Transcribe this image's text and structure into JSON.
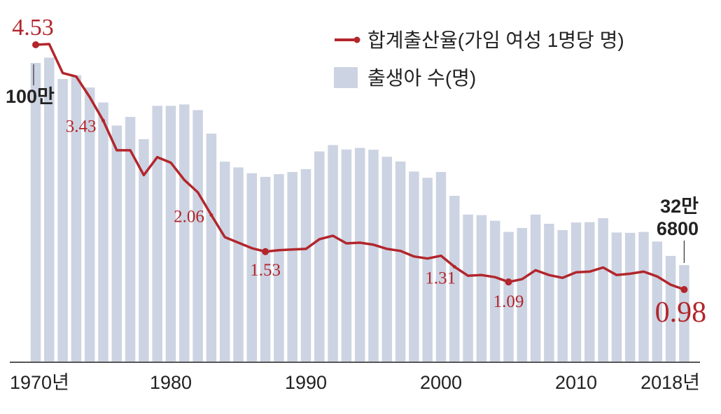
{
  "chart_data": {
    "type": "bar+line",
    "legend": {
      "placement": "top-right",
      "line_label": "합계출산율(가임 여성 1명당 명)",
      "bar_label": "출생아 수(명)"
    },
    "colors": {
      "line": "#b2262c",
      "bar": "#ccd3e2"
    },
    "years": [
      1970,
      1971,
      1972,
      1973,
      1974,
      1975,
      1976,
      1977,
      1978,
      1979,
      1980,
      1981,
      1982,
      1983,
      1984,
      1985,
      1986,
      1987,
      1988,
      1989,
      1990,
      1991,
      1992,
      1993,
      1994,
      1995,
      1996,
      1997,
      1998,
      1999,
      2000,
      2001,
      2002,
      2003,
      2004,
      2005,
      2006,
      2007,
      2008,
      2009,
      2010,
      2011,
      2012,
      2013,
      2014,
      2015,
      2016,
      2017,
      2018
    ],
    "x_ticks": [
      {
        "year": 1970,
        "label": "1970년"
      },
      {
        "year": 1980,
        "label": "1980"
      },
      {
        "year": 1990,
        "label": "1990"
      },
      {
        "year": 2000,
        "label": "2000"
      },
      {
        "year": 2010,
        "label": "2010"
      },
      {
        "year": 2018,
        "label": "2018년"
      }
    ],
    "births": [
      1007000,
      1024800,
      952800,
      965500,
      924300,
      874000,
      796300,
      825300,
      750700,
      862700,
      862800,
      867400,
      848300,
      769200,
      674800,
      655500,
      636000,
      623800,
      633000,
      640000,
      649700,
      709300,
      730700,
      715800,
      721200,
      715000,
      691200,
      675400,
      641600,
      620700,
      640100,
      559900,
      496900,
      495000,
      476000,
      438700,
      451800,
      496800,
      465900,
      444800,
      470200,
      471300,
      484600,
      436500,
      435400,
      438400,
      406200,
      357800,
      326800
    ],
    "fertility_rate": [
      4.53,
      4.54,
      4.12,
      4.07,
      3.77,
      3.43,
      3.0,
      3.0,
      2.64,
      2.9,
      2.82,
      2.57,
      2.39,
      2.06,
      1.74,
      1.66,
      1.58,
      1.53,
      1.55,
      1.56,
      1.57,
      1.71,
      1.76,
      1.65,
      1.66,
      1.63,
      1.57,
      1.54,
      1.46,
      1.43,
      1.47,
      1.31,
      1.18,
      1.19,
      1.16,
      1.09,
      1.13,
      1.26,
      1.19,
      1.15,
      1.23,
      1.24,
      1.3,
      1.19,
      1.21,
      1.24,
      1.17,
      1.05,
      0.98
    ],
    "rate_labels": [
      {
        "year": 1970,
        "text": "4.53"
      },
      {
        "year": 1975,
        "text": "3.43"
      },
      {
        "year": 1983,
        "text": "2.06"
      },
      {
        "year": 1987,
        "text": "1.53"
      },
      {
        "year": 2001,
        "text": "1.31"
      },
      {
        "year": 2005,
        "text": "1.09"
      },
      {
        "year": 2018,
        "text": "0.98"
      }
    ],
    "bar_annotations": [
      {
        "year": 1970,
        "text": "100만"
      },
      {
        "year": 2018,
        "line1": "32만",
        "line2": "6800"
      }
    ]
  }
}
